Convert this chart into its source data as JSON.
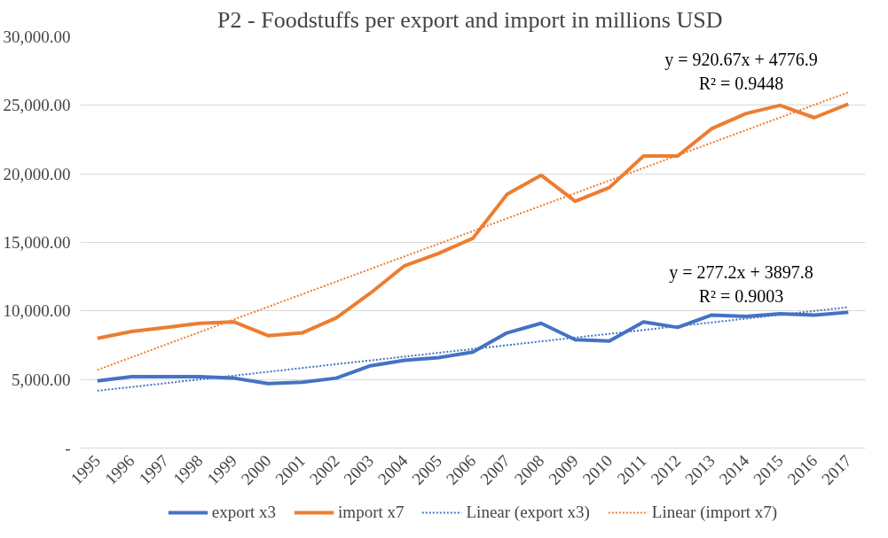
{
  "chart_data": {
    "type": "line",
    "title": "P2 - Foodstuffs  per export and import in millions USD",
    "categories": [
      "1995",
      "1996",
      "1997",
      "1998",
      "1999",
      "2000",
      "2001",
      "2002",
      "2003",
      "2004",
      "2005",
      "2006",
      "2007",
      "2008",
      "2009",
      "2010",
      "2011",
      "2012",
      "2013",
      "2014",
      "2015",
      "2016",
      "2017"
    ],
    "series": [
      {
        "name": "export x3",
        "color": "#4472c4",
        "values": [
          4900,
          5200,
          5200,
          5200,
          5100,
          4700,
          4800,
          5100,
          6000,
          6400,
          6600,
          7000,
          8400,
          9100,
          7900,
          7800,
          9200,
          8800,
          9700,
          9600,
          9800,
          9700,
          9900
        ]
      },
      {
        "name": "import x7",
        "color": "#ed7d31",
        "values": [
          8000,
          8500,
          8800,
          9100,
          9200,
          8200,
          8400,
          9500,
          11300,
          13300,
          14200,
          15300,
          18500,
          19900,
          18000,
          19000,
          21300,
          21300,
          23300,
          24400,
          25000,
          24100,
          25100
        ]
      },
      {
        "name": "Linear (export x3)",
        "color": "#4472c4",
        "line_style": "dotted",
        "values": [
          4180,
          4450,
          4730,
          5010,
          5280,
          5560,
          5840,
          6120,
          6390,
          6670,
          6950,
          7220,
          7500,
          7780,
          8060,
          8330,
          8610,
          8890,
          9160,
          9440,
          9720,
          10000,
          10270
        ]
      },
      {
        "name": "Linear (import x7)",
        "color": "#ed7d31",
        "line_style": "dotted",
        "values": [
          5700,
          6620,
          7540,
          8460,
          9380,
          10300,
          11220,
          12140,
          13060,
          13980,
          14900,
          15820,
          16750,
          17670,
          18590,
          19510,
          20430,
          21350,
          22270,
          23190,
          24110,
          25030,
          25950
        ]
      }
    ],
    "ylim": [
      0,
      30000
    ],
    "yticks": [
      {
        "value": 0,
        "label": "-"
      },
      {
        "value": 5000,
        "label": "5,000.00"
      },
      {
        "value": 10000,
        "label": "10,000.00"
      },
      {
        "value": 15000,
        "label": "15,000.00"
      },
      {
        "value": 20000,
        "label": "20,000.00"
      },
      {
        "value": 25000,
        "label": "25,000.00"
      },
      {
        "value": 30000,
        "label": "30,000.00"
      }
    ],
    "annotations": [
      "y = 920.67x + 4776.9\nR² = 0.9448",
      "y = 277.2x + 3897.8\nR² = 0.9003"
    ],
    "grid": "y",
    "legend": "bottom",
    "marker": "none",
    "line_style": "solid"
  }
}
